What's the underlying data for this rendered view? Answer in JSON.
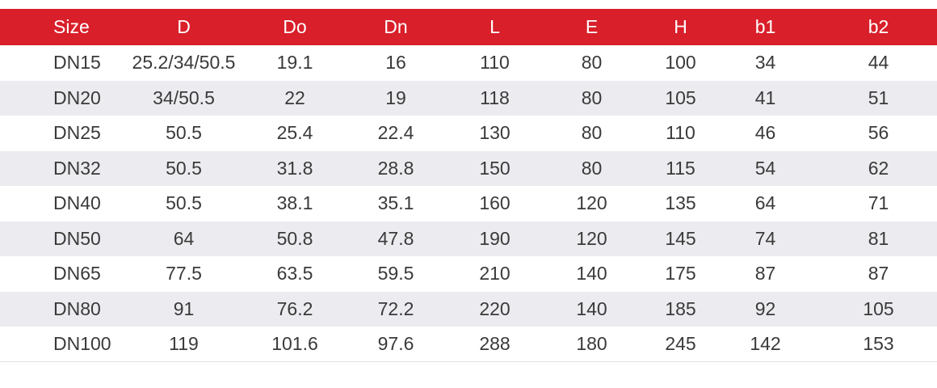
{
  "table": {
    "headers": [
      "Size",
      "D",
      "Do",
      "Dn",
      "L",
      "E",
      "H",
      "b1",
      "b2"
    ],
    "rows": [
      [
        "DN15",
        "25.2/34/50.5",
        "19.1",
        "16",
        "110",
        "80",
        "100",
        "34",
        "44"
      ],
      [
        "DN20",
        "34/50.5",
        "22",
        "19",
        "118",
        "80",
        "105",
        "41",
        "51"
      ],
      [
        "DN25",
        "50.5",
        "25.4",
        "22.4",
        "130",
        "80",
        "110",
        "46",
        "56"
      ],
      [
        "DN32",
        "50.5",
        "31.8",
        "28.8",
        "150",
        "80",
        "115",
        "54",
        "62"
      ],
      [
        "DN40",
        "50.5",
        "38.1",
        "35.1",
        "160",
        "120",
        "135",
        "64",
        "71"
      ],
      [
        "DN50",
        "64",
        "50.8",
        "47.8",
        "190",
        "120",
        "145",
        "74",
        "81"
      ],
      [
        "DN65",
        "77.5",
        "63.5",
        "59.5",
        "210",
        "140",
        "175",
        "87",
        "87"
      ],
      [
        "DN80",
        "91",
        "76.2",
        "72.2",
        "220",
        "140",
        "185",
        "92",
        "105"
      ],
      [
        "DN100",
        "119",
        "101.6",
        "97.6",
        "288",
        "180",
        "245",
        "142",
        "153"
      ]
    ]
  },
  "colors": {
    "header_bg": "#d81f2a",
    "header_text": "#ffffff",
    "stripe_bg": "#ececf0",
    "body_text": "#3a3a3a"
  }
}
